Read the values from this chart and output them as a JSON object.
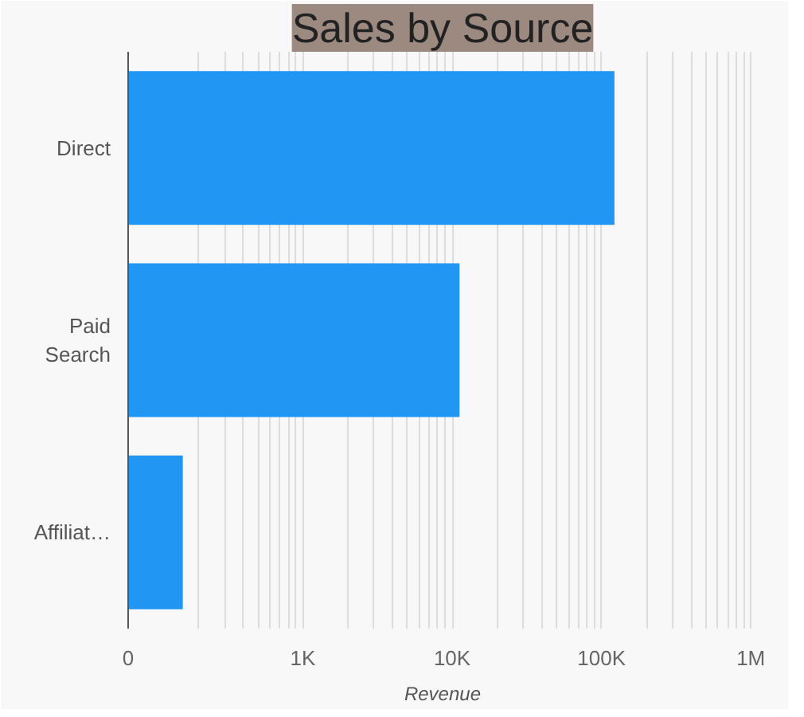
{
  "chart_data": {
    "type": "bar",
    "orientation": "horizontal",
    "title": "Sales by Source",
    "xlabel": "Revenue",
    "categories": [
      "Direct",
      "Paid\nSearch",
      "Affiliat…"
    ],
    "values": [
      122000,
      11200,
      157
    ],
    "color": "#2196f3",
    "log": "x",
    "grid": "x",
    "xlim": [
      0,
      1100000
    ],
    "xticks": [
      0,
      {
        "value": 200,
        "label": null
      },
      {
        "value": 300,
        "label": null
      },
      {
        "value": 400,
        "label": null
      },
      {
        "value": 500,
        "label": null
      },
      {
        "value": 600,
        "label": null
      },
      {
        "value": 700,
        "label": null
      },
      {
        "value": 800,
        "label": null
      },
      {
        "value": 900,
        "label": null
      },
      {
        "value": 1000,
        "label": "1K"
      },
      {
        "value": 2000,
        "label": null
      },
      {
        "value": 3000,
        "label": null
      },
      {
        "value": 4000,
        "label": null
      },
      {
        "value": 5000,
        "label": null
      },
      {
        "value": 6000,
        "label": null
      },
      {
        "value": 7000,
        "label": null
      },
      {
        "value": 8000,
        "label": null
      },
      {
        "value": 9000,
        "label": null
      },
      {
        "value": 10000,
        "label": "10K"
      },
      {
        "value": 20000,
        "label": null
      },
      {
        "value": 30000,
        "label": null
      },
      {
        "value": 40000,
        "label": null
      },
      {
        "value": 50000,
        "label": null
      },
      {
        "value": 60000,
        "label": null
      },
      {
        "value": 70000,
        "label": null
      },
      {
        "value": 80000,
        "label": null
      },
      {
        "value": 90000,
        "label": null
      },
      {
        "value": 100000,
        "label": "100K"
      },
      {
        "value": 200000,
        "label": null
      },
      {
        "value": 300000,
        "label": null
      },
      {
        "value": 400000,
        "label": null
      },
      {
        "value": 500000,
        "label": null
      },
      {
        "value": 600000,
        "label": null
      },
      {
        "value": 700000,
        "label": null
      },
      {
        "value": 800000,
        "label": null
      },
      {
        "value": 900000,
        "label": null
      },
      {
        "value": 1000000,
        "label": "1M"
      }
    ]
  }
}
